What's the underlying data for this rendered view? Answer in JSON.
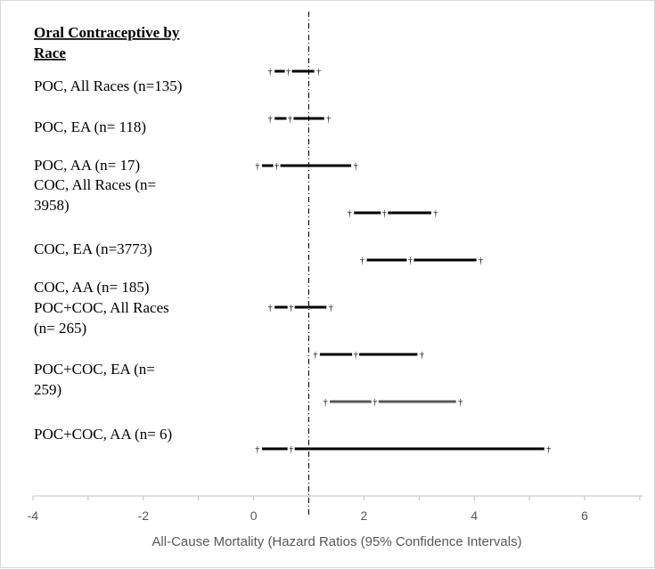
{
  "chart_data": {
    "type": "forest",
    "title": "Oral Contraceptive by Race",
    "xlabel": "All-Cause Mortality (Hazard Ratios (95% Confidence Intervals)",
    "xlim": [
      -4,
      7
    ],
    "xticks": [
      -4,
      -2,
      0,
      2,
      4,
      6
    ],
    "reference_line": 1,
    "categories": [
      "POC, All Races (n=135)",
      "POC, EA (n= 118)",
      "POC, AA (n= 17)",
      "COC, All Races (n= 3958)",
      "COC, EA (n=3773)",
      "COC, AA (n= 185)",
      "POC+COC, All Races (n= 265)",
      "POC+COC, EA (n= 259)",
      "POC+COC, AA (n= 6)"
    ],
    "label_lines": [
      [
        "POC, All Races (n=135)"
      ],
      [
        "POC, EA (n= 118)"
      ],
      [
        "POC, AA (n= 17)"
      ],
      [
        "COC, All Races (n=",
        "3958)"
      ],
      [
        "COC, EA (n=3773)"
      ],
      [
        "COC, AA (n= 185)"
      ],
      [
        "POC+COC, All Races",
        "(n= 265)"
      ],
      [
        "POC+COC, EA (n=",
        "259)"
      ],
      [
        "POC+COC, AA (n= 6)"
      ]
    ],
    "bars": [
      {
        "lower": 0.3,
        "estimate": 0.63,
        "upper": 1.18,
        "color": "#000000"
      },
      {
        "lower": 0.3,
        "estimate": 0.66,
        "upper": 1.36,
        "color": "#000000"
      },
      {
        "lower": 0.07,
        "estimate": 0.42,
        "upper": 1.85,
        "color": "#000000"
      },
      {
        "lower": 1.74,
        "estimate": 2.37,
        "upper": 3.3,
        "color": "#000000"
      },
      {
        "lower": 1.97,
        "estimate": 2.84,
        "upper": 4.12,
        "color": "#000000"
      },
      {
        "lower": 0.3,
        "estimate": 0.68,
        "upper": 1.4,
        "color": "#000000"
      },
      {
        "lower": 1.12,
        "estimate": 1.85,
        "upper": 3.05,
        "color": "#000000"
      },
      {
        "lower": 1.3,
        "estimate": 2.2,
        "upper": 3.75,
        "color": "#595959"
      },
      {
        "lower": 0.07,
        "estimate": 0.68,
        "upper": 5.35,
        "color": "#000000"
      }
    ]
  }
}
